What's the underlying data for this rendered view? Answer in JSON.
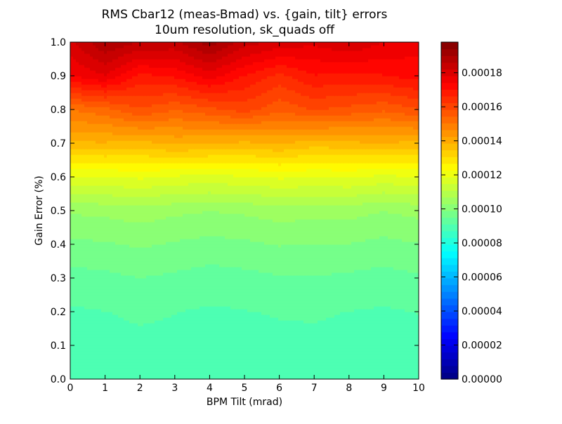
{
  "chart_data": {
    "type": "heatmap",
    "subtype": "filled-contour",
    "title": "RMS Cbar12 (meas-Bmad) vs. {gain, tilt} errors",
    "subtitle": "10um resolution, sk_quads off",
    "xlabel": "BPM Tilt (mrad)",
    "ylabel": "Gain Error (%)",
    "xlim": [
      0,
      10
    ],
    "ylim": [
      0.0,
      1.0
    ],
    "x_ticks": [
      "0",
      "1",
      "2",
      "3",
      "4",
      "5",
      "6",
      "7",
      "8",
      "9",
      "10"
    ],
    "y_ticks": [
      "0.0",
      "0.1",
      "0.2",
      "0.3",
      "0.4",
      "0.5",
      "0.6",
      "0.7",
      "0.8",
      "0.9",
      "1.0"
    ],
    "x": [
      0,
      1,
      2,
      3,
      4,
      5,
      6,
      7,
      8,
      9,
      10
    ],
    "y": [
      0.0,
      0.1,
      0.2,
      0.3,
      0.4,
      0.5,
      0.6,
      0.7,
      0.8,
      0.9,
      1.0
    ],
    "z": [
      [
        8.9e-05,
        8.92e-05,
        8.95e-05,
        8.93e-05,
        8.9e-05,
        8.91e-05,
        8.93e-05,
        8.96e-05,
        8.92e-05,
        8.91e-05,
        8.93e-05
      ],
      [
        8.92e-05,
        8.95e-05,
        9e-05,
        8.98e-05,
        8.93e-05,
        8.96e-05,
        8.99e-05,
        9e-05,
        8.98e-05,
        8.94e-05,
        8.97e-05
      ],
      [
        9.05e-05,
        9.1e-05,
        9.18e-05,
        9.12e-05,
        9.05e-05,
        9.09e-05,
        9.14e-05,
        9.16e-05,
        9.1e-05,
        9.06e-05,
        9.12e-05
      ],
      [
        9.35e-05,
        9.4e-05,
        9.5e-05,
        9.42e-05,
        9.33e-05,
        9.38e-05,
        9.46e-05,
        9.48e-05,
        9.42e-05,
        9.35e-05,
        9.44e-05
      ],
      [
        9.8e-05,
        9.85e-05,
        9.95e-05,
        9.85e-05,
        9.76e-05,
        9.82e-05,
        9.92e-05,
        9.9e-05,
        9.88e-05,
        9.78e-05,
        9.88e-05
      ],
      [
        0.0001035,
        0.000104,
        0.000105,
        0.0001038,
        0.000103,
        0.0001036,
        0.0001048,
        0.0001042,
        0.0001045,
        0.000103,
        0.0001042
      ],
      [
        0.000118,
        0.0001185,
        0.0001195,
        0.000118,
        0.0001175,
        0.0001182,
        0.0001195,
        0.0001188,
        0.0001192,
        0.0001175,
        0.0001188
      ],
      [
        0.000138,
        0.000138,
        0.000137,
        0.0001395,
        0.0001385,
        0.0001375,
        0.000139,
        0.0001365,
        0.0001375,
        0.0001385,
        0.000137
      ],
      [
        0.0001505,
        0.000153,
        0.000158,
        0.0001545,
        0.000157,
        0.00016,
        0.0001555,
        0.0001585,
        0.000157,
        0.000155,
        0.000158
      ],
      [
        0.000174,
        0.000178,
        0.000169,
        0.000171,
        0.000176,
        0.00017,
        0.000165,
        0.00017,
        0.000169,
        0.00017,
        0.000172
      ],
      [
        0.000181,
        0.00019,
        0.000186,
        0.000185,
        0.000192,
        0.000184,
        0.000181,
        0.000179,
        0.000182,
        0.000178,
        0.000176
      ]
    ],
    "colorbar": {
      "colormap": "jet",
      "range": [
        0.0,
        0.000198
      ],
      "ticks": [
        0.0,
        2e-05,
        4e-05,
        6e-05,
        8e-05,
        0.0001,
        0.00012,
        0.00014,
        0.00016,
        0.00018
      ],
      "tick_labels": [
        "0.00000",
        "0.00002",
        "0.00004",
        "0.00006",
        "0.00008",
        "0.00010",
        "0.00012",
        "0.00014",
        "0.00016",
        "0.00018"
      ]
    },
    "grid": false,
    "legend": "none"
  }
}
